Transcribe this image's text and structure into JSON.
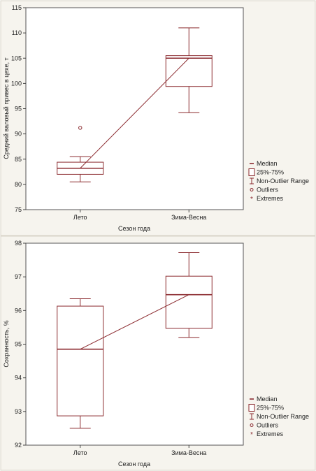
{
  "colors": {
    "marks": "#8b2a2f",
    "panel_background": "#f6f4ee",
    "plot_background": "#ffffff"
  },
  "chart_data": [
    {
      "type": "box",
      "title": "",
      "xlabel": "Сезон года",
      "ylabel": "Средний валовый привес в цехе, т",
      "ylim": [
        75,
        115
      ],
      "yticks": [
        75,
        80,
        85,
        90,
        95,
        100,
        105,
        110,
        115
      ],
      "categories": [
        "Лето",
        "Зима-Весна"
      ],
      "boxes": [
        {
          "category": "Лето",
          "min": 80.5,
          "q1": 82.0,
          "median": 83.2,
          "q3": 84.4,
          "max": 85.5,
          "outliers": [
            91.2
          ],
          "extremes": []
        },
        {
          "category": "Зима-Весна",
          "min": 94.2,
          "q1": 99.4,
          "median": 105.0,
          "q3": 105.5,
          "max": 111.0,
          "outliers": [],
          "extremes": []
        }
      ],
      "median_line": true,
      "legend": {
        "position": "bottom-right",
        "items": [
          "Median",
          "25%-75%",
          "Non-Outlier Range",
          "Outliers",
          "Extremes"
        ]
      }
    },
    {
      "type": "box",
      "title": "",
      "xlabel": "Сезон года",
      "ylabel": "Сохранность, %",
      "ylim": [
        92,
        98
      ],
      "yticks": [
        92,
        93,
        94,
        95,
        96,
        97,
        98
      ],
      "categories": [
        "Лето",
        "Зима-Весна"
      ],
      "boxes": [
        {
          "category": "Лето",
          "min": 92.5,
          "q1": 92.87,
          "median": 94.85,
          "q3": 96.13,
          "max": 96.35,
          "outliers": [],
          "extremes": []
        },
        {
          "category": "Зима-Весна",
          "min": 95.2,
          "q1": 95.47,
          "median": 96.47,
          "q3": 97.02,
          "max": 97.72,
          "outliers": [],
          "extremes": []
        }
      ],
      "median_line": true,
      "legend": {
        "position": "bottom-right",
        "items": [
          "Median",
          "25%-75%",
          "Non-Outlier Range",
          "Outliers",
          "Extremes"
        ]
      }
    }
  ]
}
